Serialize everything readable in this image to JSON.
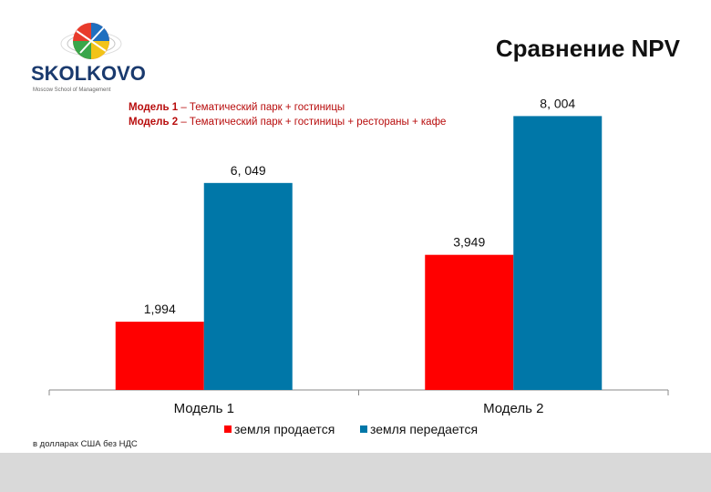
{
  "slide": {
    "title": "Сравнение NPV",
    "logo_text": "SKOLKOVO",
    "logo_subtext": "Moscow School of Management",
    "notes": [
      {
        "model": "Модель 1",
        "text": " – Тематический парк + гостиницы"
      },
      {
        "model": "Модель 2",
        "text": " – Тематический парк + гостиницы + рестораны + кафе"
      }
    ],
    "footnote": "в долларах США без НДС"
  },
  "colors": {
    "series_sold": "#ff0000",
    "series_leased": "#0077a8",
    "notes_text": "#b80d0d",
    "bottom_bar": "#d9d9d9"
  },
  "chart_data": {
    "type": "bar",
    "title": "Сравнение NPV",
    "categories": [
      "Модель 1",
      "Модель 2"
    ],
    "series": [
      {
        "name": "земля продается",
        "values": [
          1994,
          3949
        ],
        "labels": [
          "1,994",
          "3,949"
        ],
        "color": "#ff0000"
      },
      {
        "name": "земля передается",
        "values": [
          6049,
          8004
        ],
        "labels": [
          "6, 049",
          "8, 004"
        ],
        "color": "#0077a8"
      }
    ],
    "ylim": [
      0,
      9000
    ],
    "grid": false,
    "legend_position": "bottom"
  }
}
